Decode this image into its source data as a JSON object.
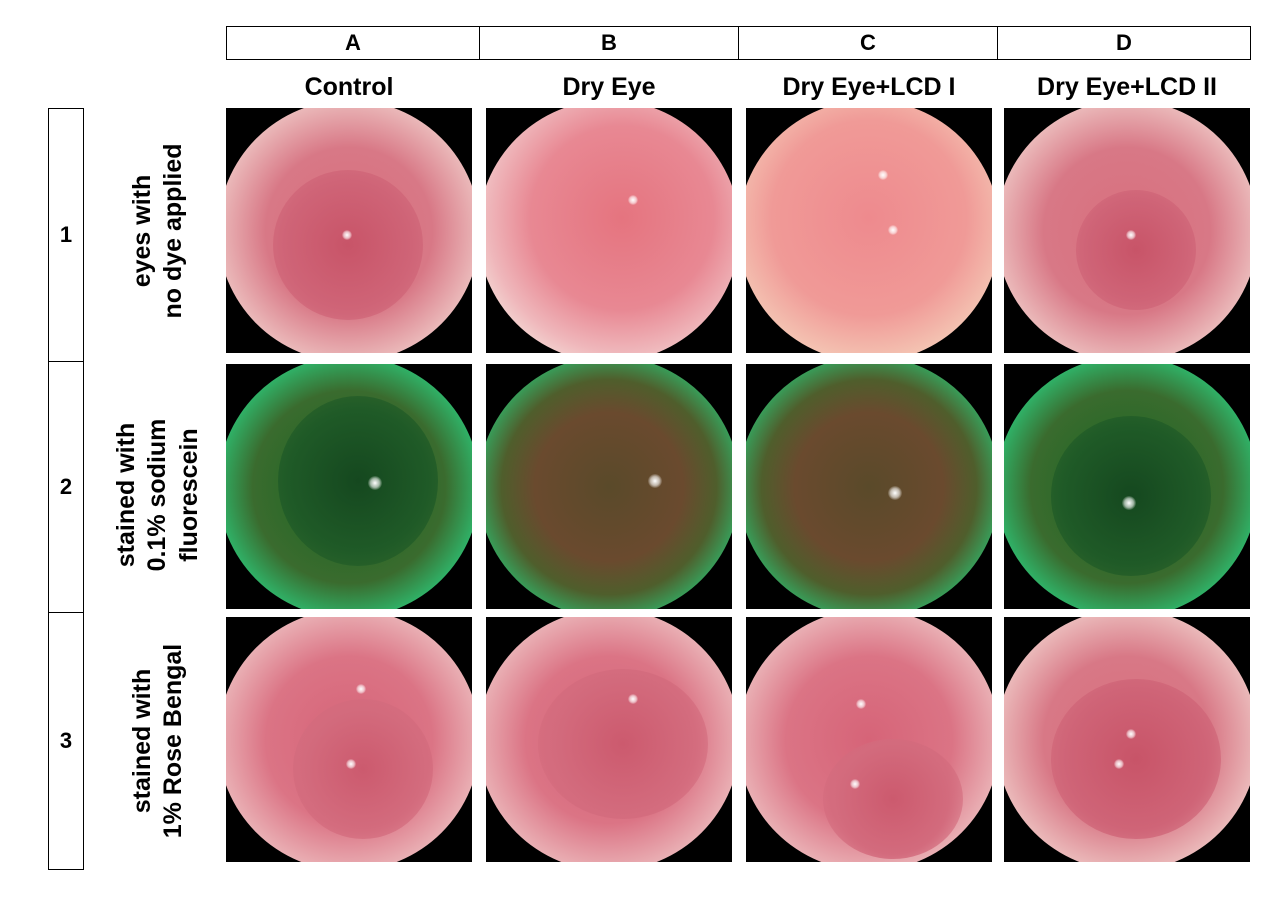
{
  "columns": [
    {
      "letter": "A",
      "label": "Control"
    },
    {
      "letter": "B",
      "label": "Dry Eye"
    },
    {
      "letter": "C",
      "label": "Dry Eye+LCD I"
    },
    {
      "letter": "D",
      "label": "Dry Eye+LCD II"
    }
  ],
  "rows": [
    {
      "number": "1",
      "label_line1": "eyes with",
      "label_line2": "no dye applied"
    },
    {
      "number": "2",
      "label_line1": "stained with",
      "label_line2": "0.1% sodium",
      "label_line3": "fluorescein"
    },
    {
      "number": "3",
      "label_line1": "stained with",
      "label_line2": "1% Rose Bengal"
    }
  ],
  "colors": {
    "background": "#ffffff",
    "photo_background": "#000000",
    "fluorescein_green": "#3fd394",
    "rose_pink": "#d66478"
  }
}
